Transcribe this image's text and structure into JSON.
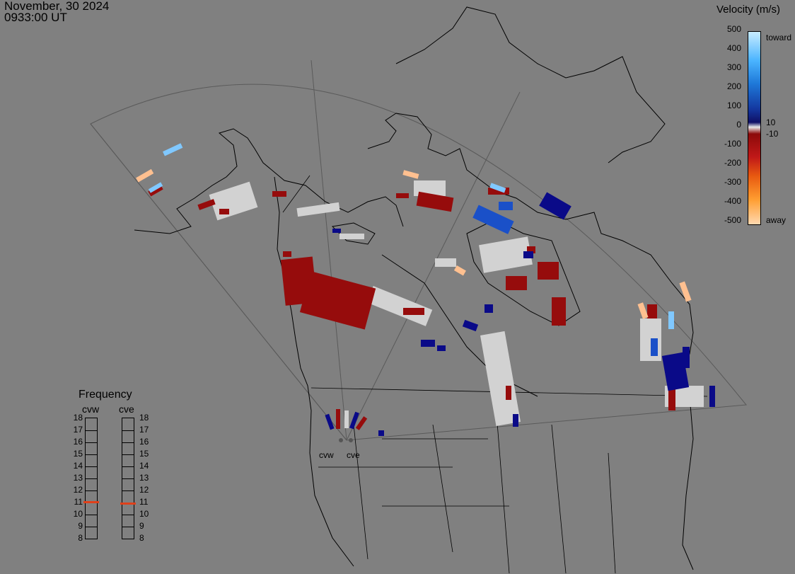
{
  "header": {
    "date": "November, 30 2024",
    "time": "0933:00 UT"
  },
  "colorbar": {
    "title": "Velocity (m/s)",
    "ticks": [
      "500",
      "400",
      "300",
      "200",
      "100",
      "0",
      "-100",
      "-200",
      "-300",
      "-400",
      "-500"
    ],
    "small_ticks": [
      "10",
      "-10"
    ],
    "label_toward": "toward",
    "label_away": "away",
    "colors": [
      "#ffd8b0",
      "#ff9d30",
      "#e85a10",
      "#c01818",
      "#8c0a0a",
      "#e8e8e8",
      "#101066",
      "#1438a0",
      "#1e78d8",
      "#4ab4ff",
      "#c8ecff"
    ]
  },
  "frequency": {
    "title": "Frequency",
    "radars": [
      "cvw",
      "cve"
    ],
    "scale": [
      "18",
      "17",
      "16",
      "15",
      "14",
      "13",
      "12",
      "11",
      "10",
      "9",
      "8"
    ],
    "marker_color": "#e0401a",
    "values_mhz": [
      11.0,
      10.9
    ]
  },
  "sites": {
    "west": "cvw",
    "east": "cve"
  },
  "scatter_colors": {
    "away_dark": "#8c0a0a",
    "away": "#a01010",
    "ground": "#d2d2d2",
    "toward_dark": "#0a0a88",
    "toward": "#1a50c8",
    "toward_light": "#80c8ff",
    "away_light": "#ffc090"
  }
}
